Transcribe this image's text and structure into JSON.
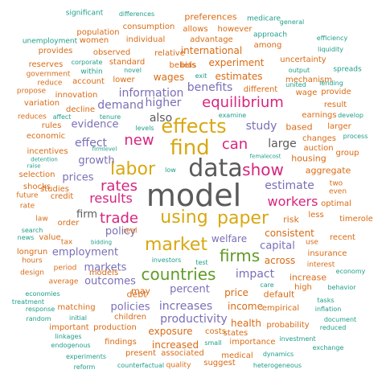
{
  "colors": {
    "gray": "#5a5a5a",
    "gold": "#d8a812",
    "pink": "#d6257f",
    "purple": "#7a6fb6",
    "green": "#5f9c26",
    "orange": "#d96b14",
    "teal": "#1f9e89"
  },
  "words": [
    {
      "text": "model",
      "color": "gray"
    },
    {
      "text": "data",
      "color": "gray"
    },
    {
      "text": "find",
      "color": "gold"
    },
    {
      "text": "effects",
      "color": "gold"
    },
    {
      "text": "using",
      "color": "gold"
    },
    {
      "text": "market",
      "color": "gold"
    },
    {
      "text": "labor",
      "color": "gold"
    },
    {
      "text": "paper",
      "color": "gold"
    },
    {
      "text": "show",
      "color": "pink"
    },
    {
      "text": "firms",
      "color": "green"
    },
    {
      "text": "countries",
      "color": "green"
    },
    {
      "text": "equilibrium",
      "color": "pink"
    },
    {
      "text": "can",
      "color": "pink"
    },
    {
      "text": "new",
      "color": "pink"
    },
    {
      "text": "trade",
      "color": "pink"
    },
    {
      "text": "rates",
      "color": "pink"
    },
    {
      "text": "results",
      "color": "pink"
    },
    {
      "text": "workers",
      "color": "pink"
    },
    {
      "text": "also",
      "color": "gray"
    },
    {
      "text": "estimate",
      "color": "purple"
    },
    {
      "text": "large",
      "color": "gray"
    },
    {
      "text": "study",
      "color": "purple"
    },
    {
      "text": "higher",
      "color": "purple"
    },
    {
      "text": "information",
      "color": "purple"
    },
    {
      "text": "benefits",
      "color": "purple"
    },
    {
      "text": "demand",
      "color": "purple"
    },
    {
      "text": "effect",
      "color": "purple"
    },
    {
      "text": "evidence",
      "color": "purple"
    },
    {
      "text": "growth",
      "color": "purple"
    },
    {
      "text": "policy",
      "color": "purple"
    },
    {
      "text": "prices",
      "color": "purple"
    },
    {
      "text": "firm",
      "color": "gray"
    },
    {
      "text": "employment",
      "color": "purple"
    },
    {
      "text": "markets",
      "color": "purple"
    },
    {
      "text": "outcomes",
      "color": "purple"
    },
    {
      "text": "percent",
      "color": "purple"
    },
    {
      "text": "increases",
      "color": "purple"
    },
    {
      "text": "productivity",
      "color": "purple"
    },
    {
      "text": "policies",
      "color": "purple"
    },
    {
      "text": "impact",
      "color": "purple"
    },
    {
      "text": "capital",
      "color": "purple"
    },
    {
      "text": "welfare",
      "color": "purple"
    },
    {
      "text": "income",
      "color": "orange"
    },
    {
      "text": "price",
      "color": "orange"
    },
    {
      "text": "exposure",
      "color": "orange"
    },
    {
      "text": "increased",
      "color": "orange"
    },
    {
      "text": "health",
      "color": "orange"
    },
    {
      "text": "estimates",
      "color": "orange"
    },
    {
      "text": "wages",
      "color": "orange"
    },
    {
      "text": "international",
      "color": "orange"
    },
    {
      "text": "experiment",
      "color": "orange"
    },
    {
      "text": "consistent",
      "color": "orange"
    },
    {
      "text": "risk",
      "color": "orange"
    },
    {
      "text": "across",
      "color": "orange"
    },
    {
      "text": "default",
      "color": "orange"
    },
    {
      "text": "increase",
      "color": "orange"
    },
    {
      "text": "aggregate",
      "color": "orange"
    },
    {
      "text": "housing",
      "color": "orange"
    },
    {
      "text": "based",
      "color": "orange"
    },
    {
      "text": "debt",
      "color": "orange"
    },
    {
      "text": "may",
      "color": "orange"
    },
    {
      "text": "preferences",
      "color": "orange"
    },
    {
      "text": "consumption",
      "color": "orange"
    },
    {
      "text": "individual",
      "color": "orange"
    },
    {
      "text": "allows",
      "color": "orange"
    },
    {
      "text": "however",
      "color": "orange"
    },
    {
      "text": "advantage",
      "color": "orange"
    },
    {
      "text": "relative",
      "color": "orange"
    },
    {
      "text": "standard",
      "color": "orange"
    },
    {
      "text": "beliefs",
      "color": "orange"
    },
    {
      "text": "lower",
      "color": "orange"
    },
    {
      "text": "among",
      "color": "orange"
    },
    {
      "text": "uncertainty",
      "color": "orange"
    },
    {
      "text": "mechanism",
      "color": "orange"
    },
    {
      "text": "different",
      "color": "orange"
    },
    {
      "text": "wage",
      "color": "orange"
    },
    {
      "text": "observed",
      "color": "orange"
    },
    {
      "text": "account",
      "color": "orange"
    },
    {
      "text": "innovation",
      "color": "orange"
    },
    {
      "text": "decline",
      "color": "orange"
    },
    {
      "text": "models",
      "color": "orange"
    },
    {
      "text": "studies",
      "color": "orange"
    },
    {
      "text": "credit",
      "color": "orange"
    },
    {
      "text": "order",
      "color": "orange"
    },
    {
      "text": "tax",
      "color": "orange"
    },
    {
      "text": "period",
      "color": "orange"
    },
    {
      "text": "average",
      "color": "orange"
    },
    {
      "text": "matching",
      "color": "orange"
    },
    {
      "text": "important",
      "color": "orange"
    },
    {
      "text": "production",
      "color": "orange"
    },
    {
      "text": "findings",
      "color": "orange"
    },
    {
      "text": "present",
      "color": "orange"
    },
    {
      "text": "associated",
      "color": "orange"
    },
    {
      "text": "quality",
      "color": "orange"
    },
    {
      "text": "suggest",
      "color": "orange"
    },
    {
      "text": "medical",
      "color": "orange"
    },
    {
      "text": "importance",
      "color": "orange"
    },
    {
      "text": "states",
      "color": "orange"
    },
    {
      "text": "costs",
      "color": "orange"
    },
    {
      "text": "probability",
      "color": "orange"
    },
    {
      "text": "empirical",
      "color": "orange"
    },
    {
      "text": "high",
      "color": "orange"
    },
    {
      "text": "interest",
      "color": "orange"
    },
    {
      "text": "insurance",
      "color": "orange"
    },
    {
      "text": "use",
      "color": "orange"
    },
    {
      "text": "less",
      "color": "orange"
    },
    {
      "text": "recent",
      "color": "orange"
    },
    {
      "text": "optimal",
      "color": "orange"
    },
    {
      "text": "two",
      "color": "orange"
    },
    {
      "text": "even",
      "color": "orange"
    },
    {
      "text": "selection",
      "color": "orange"
    },
    {
      "text": "shocks",
      "color": "orange"
    },
    {
      "text": "incentives",
      "color": "orange"
    },
    {
      "text": "economic",
      "color": "orange"
    },
    {
      "text": "rules",
      "color": "orange"
    },
    {
      "text": "variation",
      "color": "orange"
    },
    {
      "text": "women",
      "color": "orange"
    },
    {
      "text": "population",
      "color": "orange"
    },
    {
      "text": "provides",
      "color": "orange"
    },
    {
      "text": "reserves",
      "color": "orange"
    },
    {
      "text": "government",
      "color": "orange"
    },
    {
      "text": "reduce",
      "color": "orange"
    },
    {
      "text": "propose",
      "color": "orange"
    },
    {
      "text": "reduces",
      "color": "orange"
    },
    {
      "text": "result",
      "color": "orange"
    },
    {
      "text": "provide",
      "color": "orange"
    },
    {
      "text": "earnings",
      "color": "orange"
    },
    {
      "text": "larger",
      "color": "orange"
    },
    {
      "text": "changes",
      "color": "orange"
    },
    {
      "text": "auction",
      "color": "orange"
    },
    {
      "text": "group",
      "color": "orange"
    },
    {
      "text": "children",
      "color": "orange"
    },
    {
      "text": "real",
      "color": "orange"
    },
    {
      "text": "law",
      "color": "orange"
    },
    {
      "text": "value",
      "color": "orange"
    },
    {
      "text": "hours",
      "color": "orange"
    },
    {
      "text": "design",
      "color": "orange"
    },
    {
      "text": "longrun",
      "color": "orange"
    },
    {
      "text": "future",
      "color": "orange"
    },
    {
      "text": "rate",
      "color": "orange"
    },
    {
      "text": "timerole",
      "color": "orange"
    },
    {
      "text": "significant",
      "color": "teal"
    },
    {
      "text": "differences",
      "color": "teal"
    },
    {
      "text": "medicare",
      "color": "teal"
    },
    {
      "text": "general",
      "color": "teal"
    },
    {
      "text": "unemployment",
      "color": "teal"
    },
    {
      "text": "approach",
      "color": "teal"
    },
    {
      "text": "efficiency",
      "color": "teal"
    },
    {
      "text": "liquidity",
      "color": "teal"
    },
    {
      "text": "corporate",
      "color": "teal"
    },
    {
      "text": "within",
      "color": "teal"
    },
    {
      "text": "novel",
      "color": "teal"
    },
    {
      "text": "exit",
      "color": "teal"
    },
    {
      "text": "output",
      "color": "teal"
    },
    {
      "text": "united",
      "color": "teal"
    },
    {
      "text": "spreads",
      "color": "teal"
    },
    {
      "text": "lending",
      "color": "teal"
    },
    {
      "text": "tenure",
      "color": "teal"
    },
    {
      "text": "examine",
      "color": "teal"
    },
    {
      "text": "develop",
      "color": "teal"
    },
    {
      "text": "levels",
      "color": "teal"
    },
    {
      "text": "process",
      "color": "teal"
    },
    {
      "text": "affect",
      "color": "teal"
    },
    {
      "text": "firmlevel",
      "color": "teal"
    },
    {
      "text": "femalecost",
      "color": "teal"
    },
    {
      "text": "detention",
      "color": "teal"
    },
    {
      "text": "raise",
      "color": "teal"
    },
    {
      "text": "low",
      "color": "teal"
    },
    {
      "text": "search",
      "color": "teal"
    },
    {
      "text": "news",
      "color": "teal"
    },
    {
      "text": "bidding",
      "color": "teal"
    },
    {
      "text": "investors",
      "color": "teal"
    },
    {
      "text": "test",
      "color": "teal"
    },
    {
      "text": "care",
      "color": "teal"
    },
    {
      "text": "behavior",
      "color": "teal"
    },
    {
      "text": "economy",
      "color": "teal"
    },
    {
      "text": "economies",
      "color": "teal"
    },
    {
      "text": "treatment",
      "color": "teal"
    },
    {
      "text": "response",
      "color": "teal"
    },
    {
      "text": "random",
      "color": "teal"
    },
    {
      "text": "tasks",
      "color": "teal"
    },
    {
      "text": "inflation",
      "color": "teal"
    },
    {
      "text": "document",
      "color": "teal"
    },
    {
      "text": "reduced",
      "color": "teal"
    },
    {
      "text": "linkages",
      "color": "teal"
    },
    {
      "text": "endogenous",
      "color": "teal"
    },
    {
      "text": "experiments",
      "color": "teal"
    },
    {
      "text": "reform",
      "color": "teal"
    },
    {
      "text": "counterfactual",
      "color": "teal"
    },
    {
      "text": "small",
      "color": "teal"
    },
    {
      "text": "investment",
      "color": "teal"
    },
    {
      "text": "dynamics",
      "color": "teal"
    },
    {
      "text": "exchange",
      "color": "teal"
    },
    {
      "text": "heterogeneous",
      "color": "teal"
    },
    {
      "text": "initial",
      "color": "teal"
    },
    {
      "text": "bias",
      "color": "orange"
    }
  ]
}
